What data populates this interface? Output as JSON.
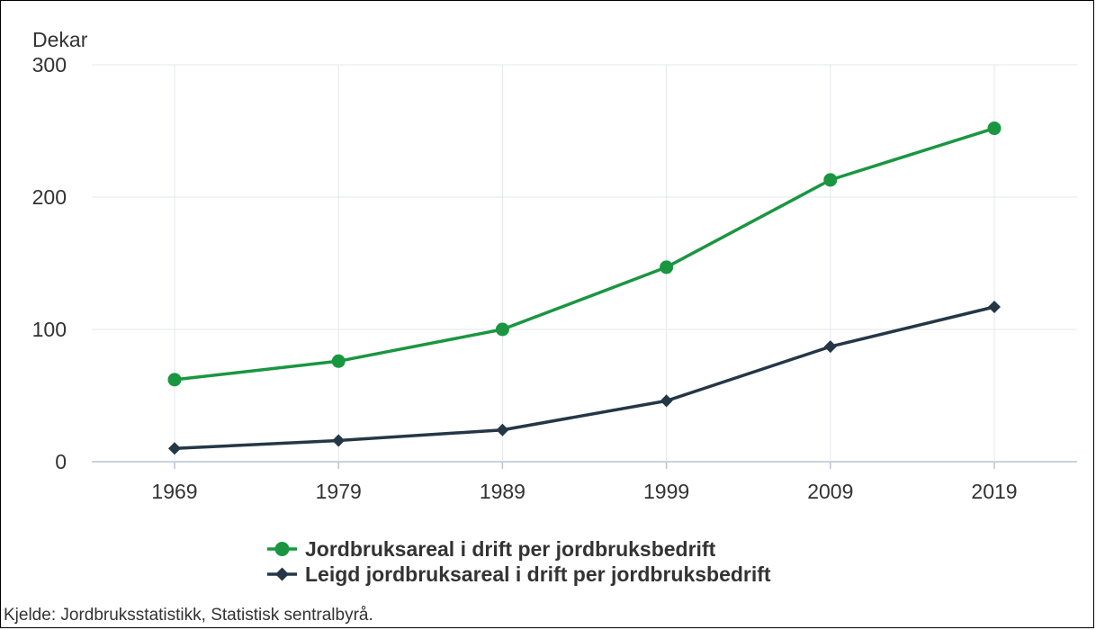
{
  "chart_data": {
    "type": "line",
    "y_unit_label": "Dekar",
    "x": [
      "1969",
      "1979",
      "1989",
      "1999",
      "2009",
      "2019"
    ],
    "ylim": [
      0,
      300
    ],
    "yticks": [
      "0",
      "100",
      "200",
      "300"
    ],
    "grid": true,
    "legend_position": "bottom-center",
    "series": [
      {
        "name": "Jordbruksareal i drift per jordbruksbedrift",
        "values": [
          62,
          76,
          100,
          147,
          213,
          252
        ],
        "color": "#1a9641",
        "marker": "circle"
      },
      {
        "name": "Leigd jordbruksareal i drift per jordbruksbedrift",
        "values": [
          10,
          16,
          24,
          46,
          87,
          117
        ],
        "color": "#253746",
        "marker": "diamond"
      }
    ],
    "source": "Kjelde: Jordbruksstatistikk, Statistisk sentralbyrå."
  }
}
